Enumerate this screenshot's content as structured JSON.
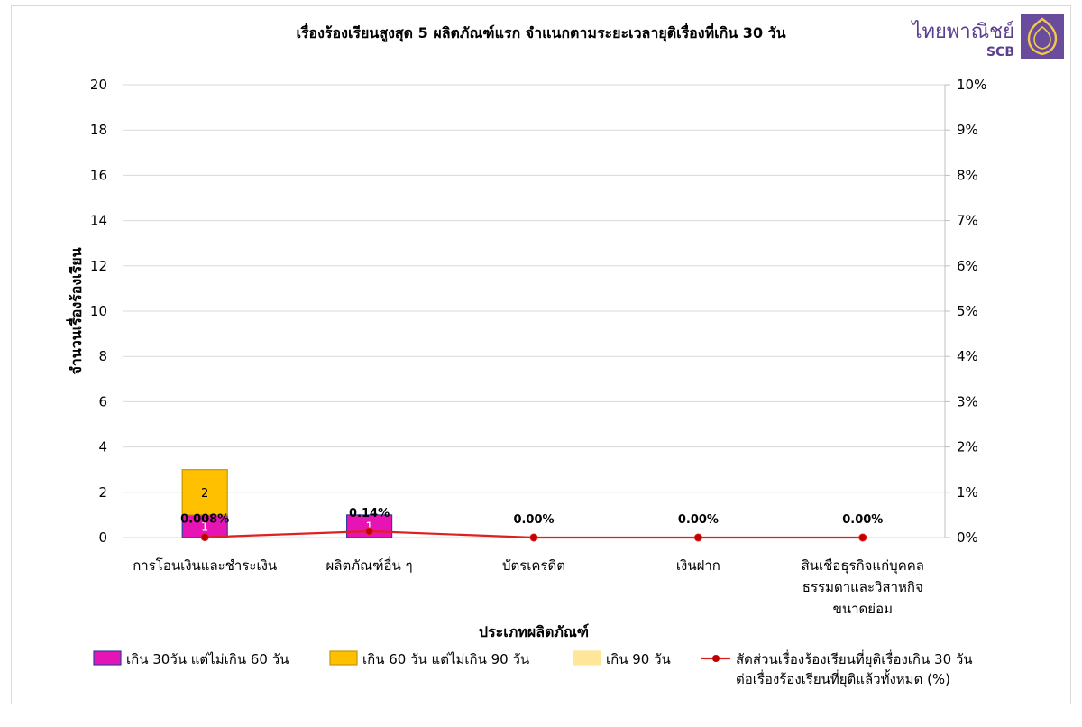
{
  "logo": {
    "text": "ไทยพาณิชย์",
    "sub": "SCB",
    "color": "#5b3f8f",
    "icon": "scb-emblem-icon"
  },
  "chart_data": {
    "type": "bar",
    "stacked": true,
    "title": "เรื่องร้องเรียนสูงสุด 5 ผลิตภัณฑ์แรก จำแนกตามระยะเวลายุติเรื่องที่เกิน 30 วัน",
    "xlabel": "ประเภทผลิตภัณฑ์",
    "ylabel": "จำนวนเรื่องร้องเรียน",
    "ylim": [
      0,
      20
    ],
    "yticks": [
      "0",
      "2",
      "4",
      "6",
      "8",
      "10",
      "12",
      "14",
      "16",
      "18",
      "20"
    ],
    "y2lim": [
      0,
      10
    ],
    "y2ticks": [
      "0%",
      "1%",
      "2%",
      "3%",
      "4%",
      "5%",
      "6%",
      "7%",
      "8%",
      "9%",
      "10%"
    ],
    "grid": true,
    "legend_position": "bottom",
    "categories": [
      [
        "การโอนเงินและชำระเงิน"
      ],
      [
        "ผลิตภัณฑ์อื่น ๆ"
      ],
      [
        "บัตรเครดิต"
      ],
      [
        "เงินฝาก"
      ],
      [
        "สินเชื่อธุรกิจแก่บุคคล",
        "ธรรมดาและวิสาหกิจ",
        "ขนาดย่อม"
      ]
    ],
    "series": [
      {
        "name": "เกิน 30วัน แต่ไม่เกิน 60 วัน",
        "color": "#e614b4",
        "stroke": "#2f3f9f",
        "values": [
          1,
          1,
          0,
          0,
          0
        ],
        "labels": [
          "1",
          "1",
          "",
          "",
          ""
        ]
      },
      {
        "name": "เกิน 60 วัน แต่ไม่เกิน 90 วัน",
        "color": "#ffc000",
        "stroke": "#c79600",
        "values": [
          2,
          0,
          0,
          0,
          0
        ],
        "labels": [
          "2",
          "",
          "",
          "",
          ""
        ]
      },
      {
        "name": "เกิน 90 วัน",
        "color": "#ffe699",
        "stroke": "#ffe699",
        "values": [
          0,
          0,
          0,
          0,
          0
        ],
        "labels": [
          "",
          "",
          "",
          "",
          ""
        ]
      }
    ],
    "line": {
      "name": [
        "สัดส่วนเรื่องร้องเรียนที่ยุติเรื่องเกิน 30 วัน",
        "ต่อเรื่องร้องเรียนที่ยุติแล้วทั้งหมด (%)"
      ],
      "color": "#e02020",
      "values": [
        0.008,
        0.14,
        0.0,
        0.0,
        0.0
      ],
      "labels": [
        "0.008%",
        "0.14%",
        "0.00%",
        "0.00%",
        "0.00%"
      ]
    }
  }
}
